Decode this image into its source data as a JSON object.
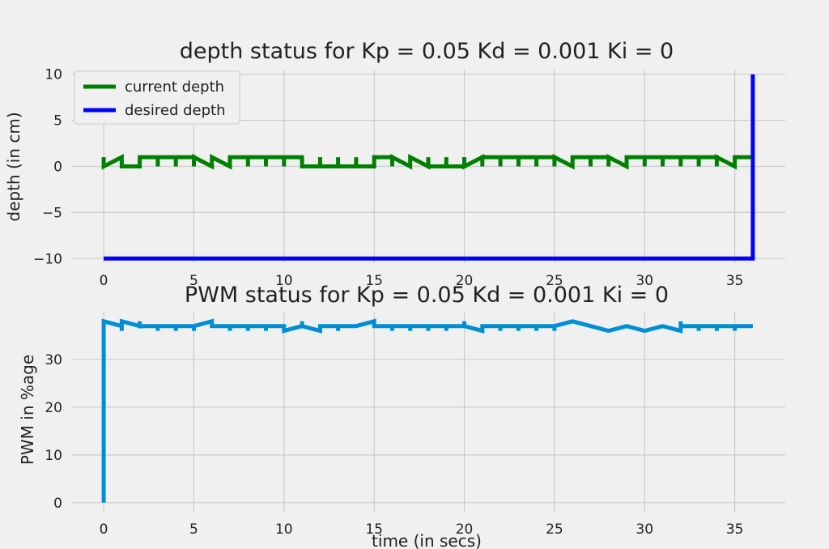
{
  "colors": {
    "background": "#f0f0f0",
    "grid": "#cbcbcb",
    "current": "#008000",
    "desired": "#0000ff",
    "pwm": "#008fd5"
  },
  "chart_data": [
    {
      "type": "line",
      "title": "depth status for Kp = 0.05 Kd = 0.001 Ki = 0",
      "xlabel": "",
      "ylabel": "depth (in cm)",
      "xlim": [
        -1.8,
        37.8
      ],
      "ylim": [
        -10.5,
        10.5
      ],
      "xticks": [
        0,
        5,
        10,
        15,
        20,
        25,
        30,
        35
      ],
      "xtick_labels": [
        "0",
        "5",
        "10",
        "15",
        "20",
        "25",
        "30",
        "35"
      ],
      "yticks": [
        -10,
        -5,
        0,
        5,
        10
      ],
      "ytick_labels": [
        "−10",
        "−5",
        "0",
        "5",
        "10"
      ],
      "grid": true,
      "legend_position": "top-left",
      "series": [
        {
          "name": "current depth",
          "color": "#008000",
          "x": [
            0,
            0,
            0,
            0,
            1,
            1,
            1,
            2,
            2,
            2,
            3,
            3,
            3,
            4,
            4,
            4,
            5,
            5,
            5,
            6,
            6,
            6,
            7,
            7,
            7,
            8,
            8,
            8,
            9,
            9,
            9,
            10,
            10,
            10,
            11,
            11,
            11,
            12,
            12,
            12,
            13,
            13,
            13,
            14,
            14,
            14,
            15,
            15,
            15,
            16,
            16,
            16,
            17,
            17,
            18,
            18,
            18,
            19,
            19,
            19,
            20,
            20,
            20,
            21,
            21,
            21,
            22,
            22,
            22,
            23,
            23,
            23,
            24,
            24,
            24,
            25,
            25,
            25,
            26,
            26,
            27,
            27,
            27,
            28,
            28,
            28,
            29,
            29,
            29,
            30,
            30,
            30,
            31,
            31,
            31,
            32,
            32,
            32,
            33,
            33,
            33,
            34,
            34,
            34,
            35,
            35,
            35,
            35.95
          ],
          "y": [
            0,
            1,
            0,
            0,
            1,
            0,
            0,
            0,
            1,
            1,
            1,
            0,
            1,
            1,
            0,
            1,
            1,
            0,
            1,
            0,
            0,
            1,
            0,
            0,
            1,
            1,
            0,
            1,
            1,
            0,
            1,
            1,
            0,
            1,
            1,
            0,
            0,
            0,
            1,
            0,
            0,
            1,
            0,
            0,
            1,
            0,
            0,
            1,
            1,
            1,
            0,
            1,
            0,
            1,
            0,
            1,
            0,
            0,
            1,
            0,
            0,
            1,
            0,
            1,
            0,
            1,
            1,
            0,
            1,
            1,
            0,
            1,
            1,
            0,
            1,
            1,
            0,
            1,
            0,
            1,
            1,
            0,
            1,
            1,
            0,
            1,
            0,
            1,
            1,
            1,
            0,
            1,
            1,
            0,
            1,
            1,
            0,
            1,
            1,
            0,
            1,
            1,
            0,
            1,
            0,
            1,
            1,
            1
          ]
        },
        {
          "name": "desired depth",
          "color": "#0000ff",
          "x": [
            0,
            36,
            36,
            36
          ],
          "y": [
            -10,
            -10,
            0,
            10
          ]
        }
      ]
    },
    {
      "type": "line",
      "title": "PWM status for Kp = 0.05 Kd = 0.001 Ki = 0",
      "xlabel": "time (in secs)",
      "ylabel": "PWM in %age",
      "xlim": [
        -1.8,
        37.8
      ],
      "ylim": [
        -1.9,
        40
      ],
      "xticks": [
        0,
        5,
        10,
        15,
        20,
        25,
        30,
        35
      ],
      "xtick_labels": [
        "0",
        "5",
        "10",
        "15",
        "20",
        "25",
        "30",
        "35"
      ],
      "yticks": [
        0,
        10,
        20,
        30
      ],
      "ytick_labels": [
        "0",
        "10",
        "20",
        "30"
      ],
      "grid": true,
      "series": [
        {
          "color": "#008fd5",
          "x": [
            0,
            0,
            1,
            1,
            1,
            2,
            2,
            2,
            3,
            3,
            3,
            4,
            4,
            4,
            5,
            5,
            5,
            6,
            6,
            7,
            7,
            7,
            8,
            8,
            8,
            9,
            9,
            9,
            10,
            10,
            11,
            11,
            11,
            12,
            12,
            13,
            13,
            13,
            14,
            15,
            15,
            16,
            16,
            16,
            17,
            17,
            17,
            18,
            18,
            18,
            19,
            19,
            19,
            20,
            20,
            20,
            21,
            21,
            22,
            22,
            22,
            23,
            23,
            23,
            24,
            24,
            24,
            25,
            25,
            25,
            26,
            27,
            28,
            29,
            29,
            30,
            31,
            32,
            32,
            32,
            33,
            33,
            33,
            34,
            34,
            34,
            35,
            35,
            35,
            36
          ],
          "y": [
            0,
            38,
            37,
            36,
            38,
            37,
            38,
            37,
            37,
            36,
            37,
            37,
            36,
            37,
            37,
            36,
            37,
            38,
            37,
            37,
            36,
            37,
            37,
            36,
            37,
            37,
            36,
            37,
            37,
            36,
            37,
            38,
            37,
            36,
            37,
            37,
            36,
            37,
            37,
            38,
            37,
            37,
            36,
            37,
            37,
            36,
            37,
            37,
            36,
            37,
            37,
            36,
            37,
            37,
            38,
            37,
            36,
            37,
            37,
            36,
            37,
            37,
            36,
            37,
            37,
            36,
            37,
            37,
            36,
            37,
            38,
            37,
            36,
            37,
            37,
            36,
            37,
            36,
            38,
            37,
            37,
            36,
            37,
            37,
            36,
            37,
            37,
            36,
            37,
            37
          ]
        }
      ]
    }
  ]
}
